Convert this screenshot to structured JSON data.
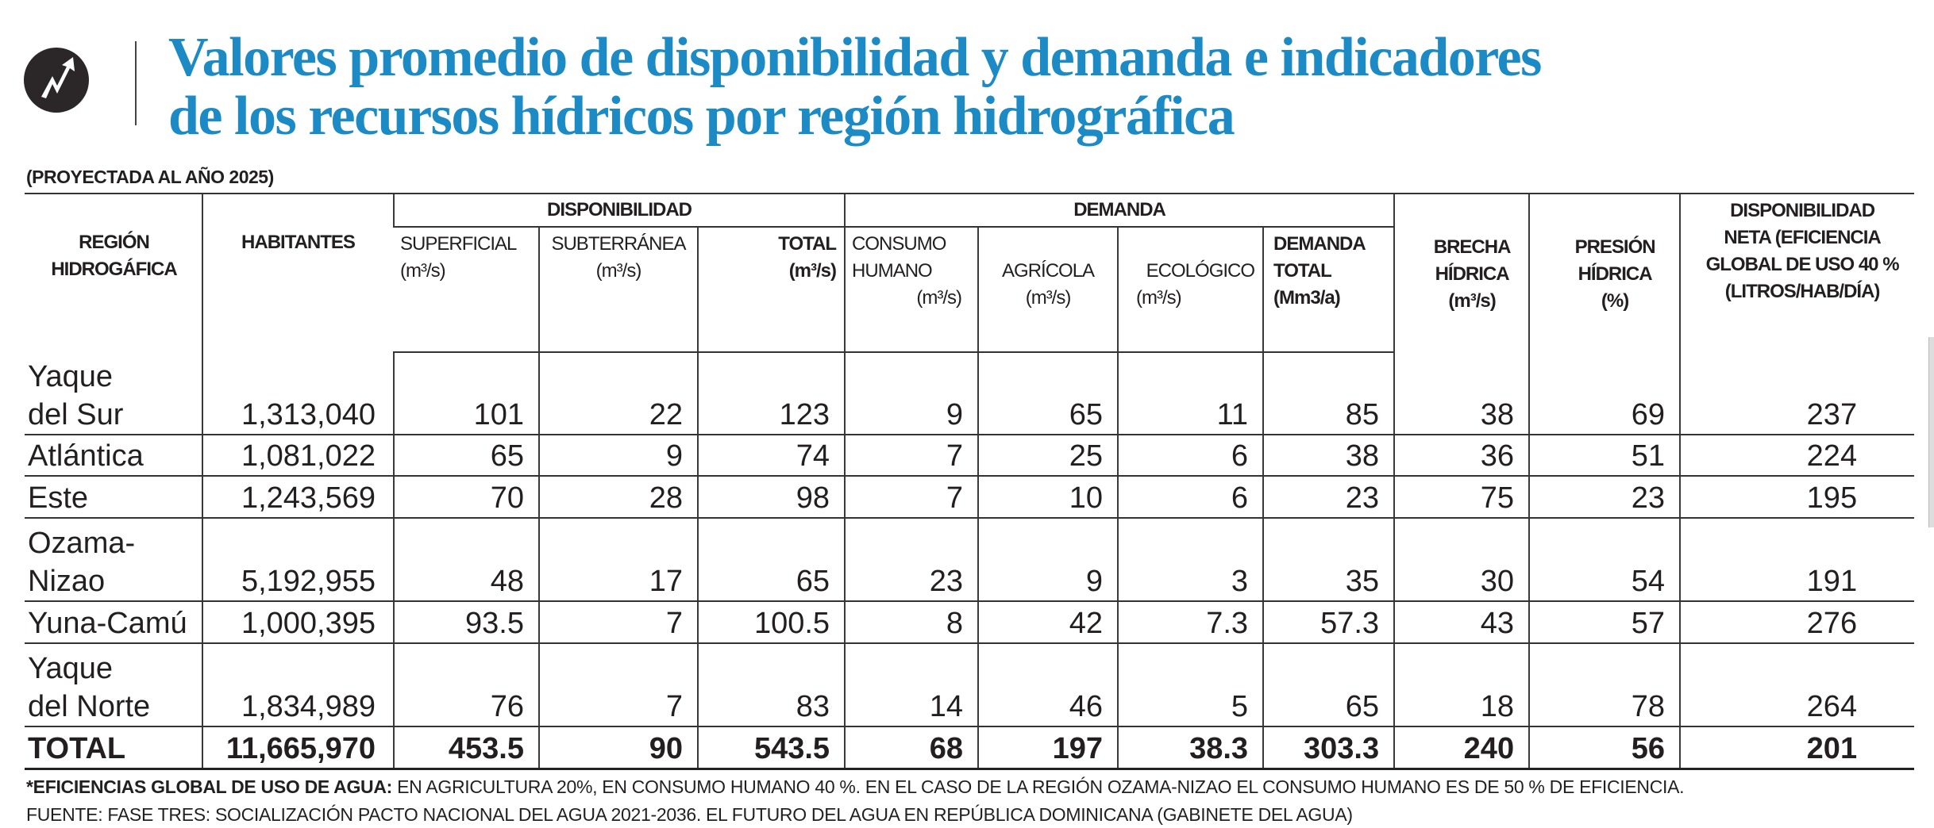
{
  "header": {
    "icon": "trend-arrow-icon",
    "title_line1": "Valores promedio de disponibilidad y demanda e indicadores",
    "title_line2": "de los recursos hídricos por región hidrográfica",
    "subtitle": "(PROYECTADA AL AÑO 2025)",
    "title_color": "#1b8ac5"
  },
  "table": {
    "groups": {
      "disponibilidad": "DISPONIBILIDAD",
      "demanda": "DEMANDA"
    },
    "columns": [
      {
        "line1": "REGIÓN",
        "line2": "HIDROGÁFICA"
      },
      {
        "line1": "HABITANTES"
      },
      {
        "line1": "SUPERFICIAL",
        "line2": "(m³/s)"
      },
      {
        "line1": "SUBTERRÁNEA",
        "line2": "(m³/s)"
      },
      {
        "line1": "TOTAL",
        "line2": "(m³/s)"
      },
      {
        "line1": "CONSUMO",
        "line2": "HUMANO",
        "line3": "(m³/s)"
      },
      {
        "line1": "AGRÍCOLA",
        "line2": "(m³/s)"
      },
      {
        "line1": "ECOLÓGICO",
        "line2": "(m³/s)"
      },
      {
        "line1": "DEMANDA",
        "line2": "TOTAL",
        "line3": "(Mm3/a)"
      },
      {
        "line1": "BRECHA",
        "line2": "HÍDRICA",
        "line3": "(m³/s)"
      },
      {
        "line1": "PRESIÓN",
        "line2": "HÍDRICA",
        "line3": "(%)"
      },
      {
        "line1": "DISPONIBILIDAD",
        "line2": "NETA (EFICIENCIA",
        "line3": "GLOBAL DE USO 40 %",
        "line4": "(LITROS/HAB/DÍA)"
      }
    ],
    "rows": [
      {
        "region1": "Yaque",
        "region2": "del Sur",
        "values": [
          "1,313,040",
          "101",
          "22",
          "123",
          "9",
          "65",
          "11",
          "85",
          "38",
          "69",
          "237"
        ]
      },
      {
        "region1": "Atlántica",
        "values": [
          "1,081,022",
          "65",
          "9",
          "74",
          "7",
          "25",
          "6",
          "38",
          "36",
          "51",
          "224"
        ]
      },
      {
        "region1": "Este",
        "values": [
          "1,243,569",
          "70",
          "28",
          "98",
          "7",
          "10",
          "6",
          "23",
          "75",
          "23",
          "195"
        ]
      },
      {
        "region1": "Ozama-",
        "region2": "Nizao",
        "values": [
          "5,192,955",
          "48",
          "17",
          "65",
          "23",
          "9",
          "3",
          "35",
          "30",
          "54",
          "191"
        ]
      },
      {
        "region1": "Yuna-Camú",
        "values": [
          "1,000,395",
          "93.5",
          "7",
          "100.5",
          "8",
          "42",
          "7.3",
          "57.3",
          "43",
          "57",
          "276"
        ]
      },
      {
        "region1": "Yaque",
        "region2": "del Norte",
        "values": [
          "1,834,989",
          "76",
          "7",
          "83",
          "14",
          "46",
          "5",
          "65",
          "18",
          "78",
          "264"
        ]
      }
    ],
    "total": {
      "label": "TOTAL",
      "values": [
        "11,665,970",
        "453.5",
        "90",
        "543.5",
        "68",
        "197",
        "38.3",
        "303.3",
        "240",
        "56",
        "201"
      ]
    }
  },
  "footnotes": {
    "note_bold": "*EFICIENCIAS GLOBAL DE USO DE AGUA:",
    "note_text": " EN AGRICULTURA 20%, EN CONSUMO HUMANO 40 %. EN EL CASO DE LA REGIÓN OZAMA-NIZAO EL CONSUMO HUMANO ES DE 50 % DE EFICIENCIA.",
    "source": "FUENTE: FASE TRES: SOCIALIZACIÓN PACTO NACIONAL DEL AGUA 2021-2036. EL FUTURO DEL AGUA EN REPÚBLICA DOMINICANA (GABINETE DEL AGUA)"
  }
}
